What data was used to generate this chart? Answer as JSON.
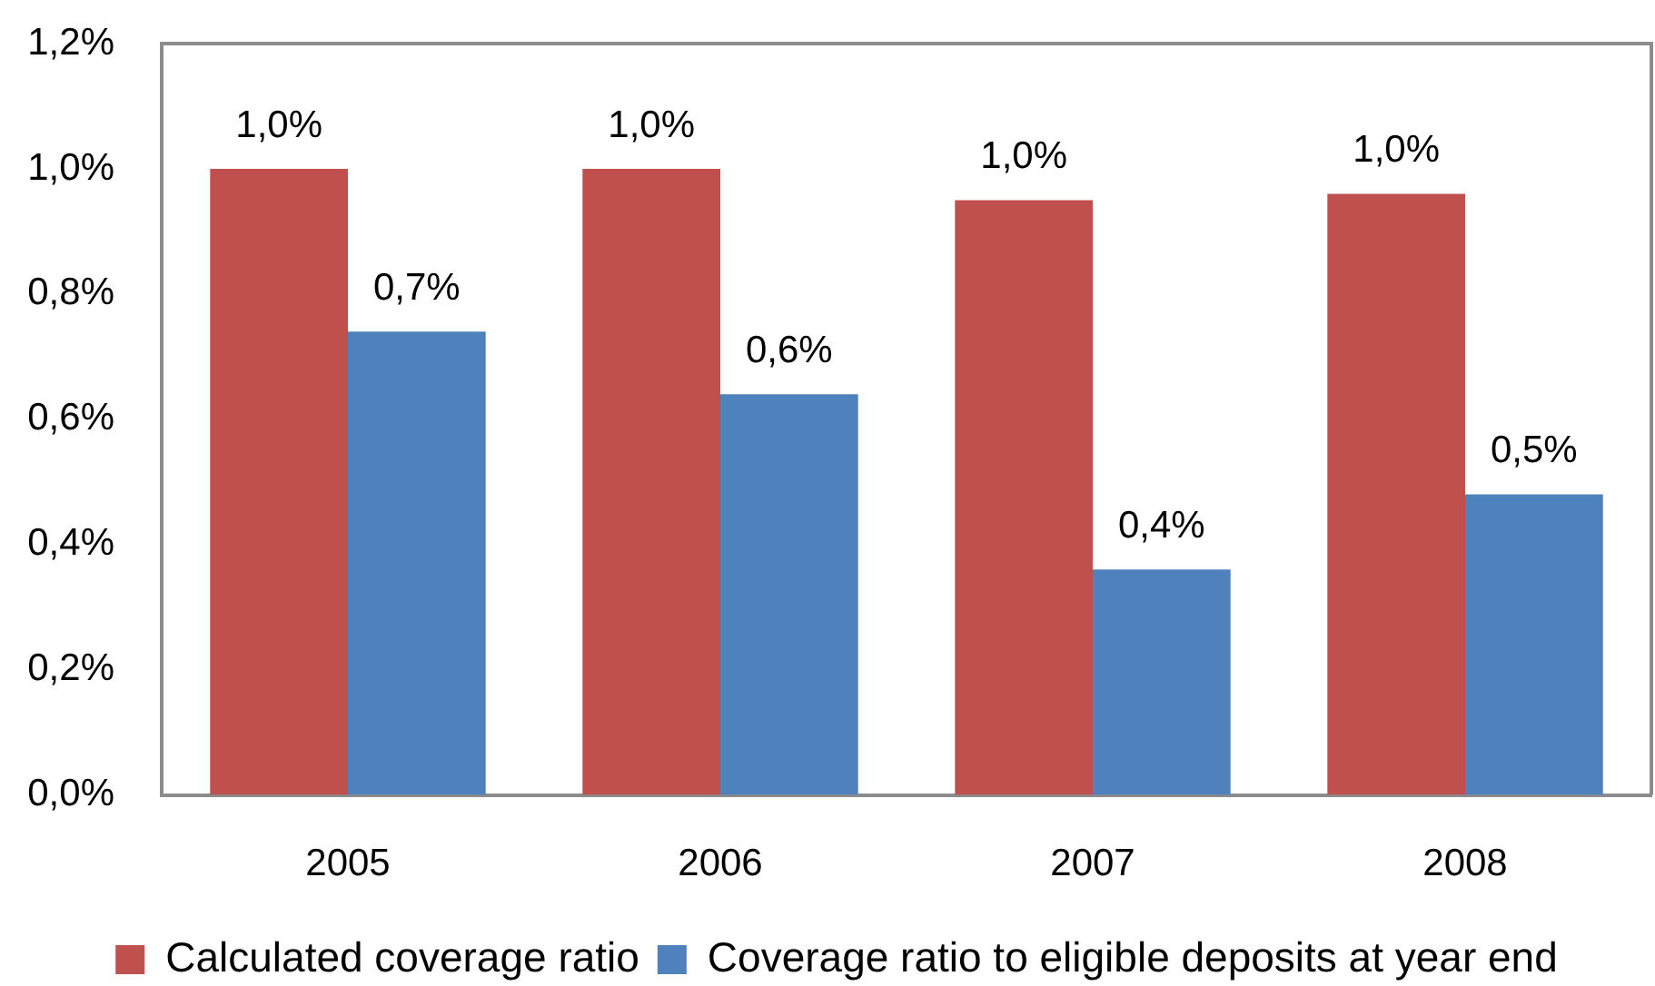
{
  "chart_data": {
    "type": "bar",
    "categories": [
      "2005",
      "2006",
      "2007",
      "2008"
    ],
    "series": [
      {
        "name": "Calculated coverage ratio",
        "color": "#c0504d",
        "values": [
          1.0,
          1.0,
          0.95,
          0.96
        ],
        "value_labels": [
          "1,0%",
          "1,0%",
          "1,0%",
          "1,0%"
        ]
      },
      {
        "name": "Coverage ratio to eligible deposits at year end",
        "color": "#4f81bd",
        "values": [
          0.74,
          0.64,
          0.36,
          0.48
        ],
        "value_labels": [
          "0,7%",
          "0,6%",
          "0,4%",
          "0,5%"
        ]
      }
    ],
    "ylim": [
      0,
      1.2
    ],
    "yticks": [
      {
        "value": 0,
        "label": "0,0%"
      },
      {
        "value": 0.2,
        "label": "0,2%"
      },
      {
        "value": 0.4,
        "label": "0,4%"
      },
      {
        "value": 0.6,
        "label": "0,6%"
      },
      {
        "value": 0.8,
        "label": "0,8%"
      },
      {
        "value": 1.0,
        "label": "1,0%"
      },
      {
        "value": 1.2,
        "label": "1,2%"
      }
    ],
    "grid": false,
    "legend": "bottom"
  }
}
